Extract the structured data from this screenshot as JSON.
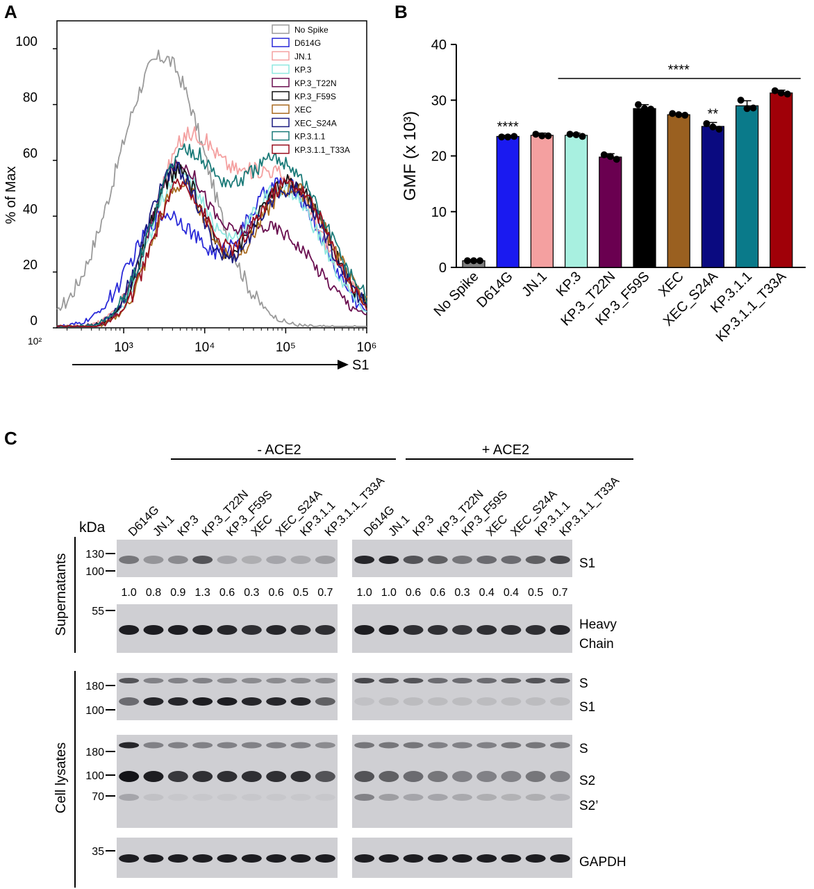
{
  "panels": {
    "a_label": "A",
    "b_label": "B",
    "c_label": "C"
  },
  "chart_data": [
    {
      "type": "line",
      "panel": "A",
      "ylabel": "% of Max",
      "xlabel": "S1",
      "xscale": "log",
      "xlim": [
        150,
        1000000
      ],
      "ylim": [
        0,
        110
      ],
      "yticks": [
        0,
        20,
        40,
        60,
        80,
        100
      ],
      "xticks": [
        {
          "value": 100,
          "label": "10²"
        },
        {
          "value": 1000,
          "label": "10³"
        },
        {
          "value": 10000,
          "label": "10⁴"
        },
        {
          "value": 100000,
          "label": "10⁵"
        },
        {
          "value": 1000000,
          "label": "10⁶"
        }
      ],
      "legend_position": "top-right",
      "series": [
        {
          "name": "No Spike",
          "color": "#9a9a9a",
          "peaks": [
            [
              3000,
              97,
              0.55
            ]
          ],
          "noise": 3
        },
        {
          "name": "D614G",
          "color": "#2a2ad8",
          "peaks": [
            [
              3300,
              40,
              0.42
            ],
            [
              90000,
              52,
              0.5
            ]
          ],
          "noise": 3
        },
        {
          "name": "JN.1",
          "color": "#f4a0a0",
          "peaks": [
            [
              5500,
              58,
              0.4
            ],
            [
              70000,
              55,
              0.6
            ]
          ],
          "noise": 3
        },
        {
          "name": "KP.3",
          "color": "#8fe8e0",
          "peaks": [
            [
              4800,
              54,
              0.35
            ],
            [
              90000,
              50,
              0.5
            ]
          ],
          "noise": 3
        },
        {
          "name": "KP.3_T22N",
          "color": "#6a0f50",
          "peaks": [
            [
              4500,
              52,
              0.35
            ],
            [
              60000,
              36,
              0.6
            ]
          ],
          "noise": 2.5
        },
        {
          "name": "KP.3_F59S",
          "color": "#111111",
          "peaks": [
            [
              4500,
              55,
              0.35
            ],
            [
              110000,
              52,
              0.5
            ]
          ],
          "noise": 3
        },
        {
          "name": "XEC",
          "color": "#a86a20",
          "peaks": [
            [
              5000,
              50,
              0.35
            ],
            [
              120000,
              50,
              0.5
            ]
          ],
          "noise": 3
        },
        {
          "name": "XEC_S24A",
          "color": "#1a1a80",
          "peaks": [
            [
              4200,
              56,
              0.35
            ],
            [
              110000,
              50,
              0.5
            ]
          ],
          "noise": 3
        },
        {
          "name": "KP.3.1.1",
          "color": "#1a7a78",
          "peaks": [
            [
              5000,
              55,
              0.38
            ],
            [
              80000,
              60,
              0.6
            ]
          ],
          "noise": 3
        },
        {
          "name": "KP.3.1.1_T33A",
          "color": "#9a1020",
          "peaks": [
            [
              5000,
              50,
              0.35
            ],
            [
              110000,
              52,
              0.5
            ]
          ],
          "noise": 3
        }
      ]
    },
    {
      "type": "bar",
      "panel": "B",
      "ylabel": "GMF (x 10³)",
      "ylim": [
        0,
        40
      ],
      "yticks": [
        0,
        10,
        20,
        30,
        40
      ],
      "categories": [
        "No Spike",
        "D614G",
        "JN.1",
        "KP.3",
        "KP.3_T22N",
        "KP.3_F59S",
        "XEC",
        "XEC_S24A",
        "KP.3.1.1",
        "KP.3.1.1_T33A"
      ],
      "values": [
        1.2,
        23.5,
        23.7,
        23.7,
        19.8,
        28.5,
        27.4,
        25.3,
        29.0,
        31.3
      ],
      "errors": [
        0.2,
        0.2,
        0.4,
        0.4,
        0.6,
        0.7,
        0.2,
        0.7,
        0.9,
        0.5
      ],
      "points": [
        [
          1.2,
          1.2,
          1.2
        ],
        [
          23.4,
          23.4,
          23.5
        ],
        [
          23.9,
          23.6,
          23.6
        ],
        [
          23.9,
          23.8,
          23.5
        ],
        [
          20.2,
          19.9,
          19.4
        ],
        [
          29.2,
          28.5,
          28.4
        ],
        [
          27.6,
          27.4,
          27.3
        ],
        [
          25.8,
          25.2,
          24.8
        ],
        [
          30.0,
          28.5,
          28.6
        ],
        [
          31.7,
          31.3,
          31.1
        ]
      ],
      "colors": [
        "#7f7f7f",
        "#1a1af0",
        "#f4a0a0",
        "#a8f0e0",
        "#6a0050",
        "#000000",
        "#9a6020",
        "#0a0a80",
        "#0a7a8a",
        "#a00008"
      ],
      "annotations": [
        {
          "category": "D614G",
          "text": "****"
        },
        {
          "category": "XEC_S24A",
          "text": "**"
        },
        {
          "span": [
            "KP.3",
            "KP.3.1.1_T33A"
          ],
          "text": "****"
        }
      ]
    }
  ],
  "western_blot": {
    "groups": [
      "- ACE2",
      "+ ACE2"
    ],
    "lanes": [
      "D614G",
      "JN.1",
      "KP.3",
      "KP.3_T22N",
      "KP.3_F59S",
      "XEC",
      "XEC_S24A",
      "KP.3.1.1",
      "KP.3.1.1_T33A"
    ],
    "kda_label": "kDa",
    "sections": [
      "Supernatants",
      "Cell lysates"
    ],
    "s1_ratios_minus": [
      "1.0",
      "0.8",
      "0.9",
      "1.3",
      "0.6",
      "0.3",
      "0.6",
      "0.5",
      "0.7"
    ],
    "s1_ratios_plus": [
      "1.0",
      "1.0",
      "0.6",
      "0.6",
      "0.3",
      "0.4",
      "0.4",
      "0.5",
      "0.7"
    ],
    "markers": {
      "b1": [
        "130",
        "100"
      ],
      "b2": [
        "55"
      ],
      "b3": [
        "180",
        "100"
      ],
      "b4": [
        "180",
        "100",
        "70"
      ],
      "b5": [
        "35"
      ]
    },
    "band_labels": {
      "b1": [
        "S1"
      ],
      "b2": [
        "Heavy",
        "Chain"
      ],
      "b3": [
        "S",
        "S1"
      ],
      "b4": [
        "S",
        "S2",
        "S2’"
      ],
      "b5": [
        "GAPDH"
      ]
    }
  }
}
